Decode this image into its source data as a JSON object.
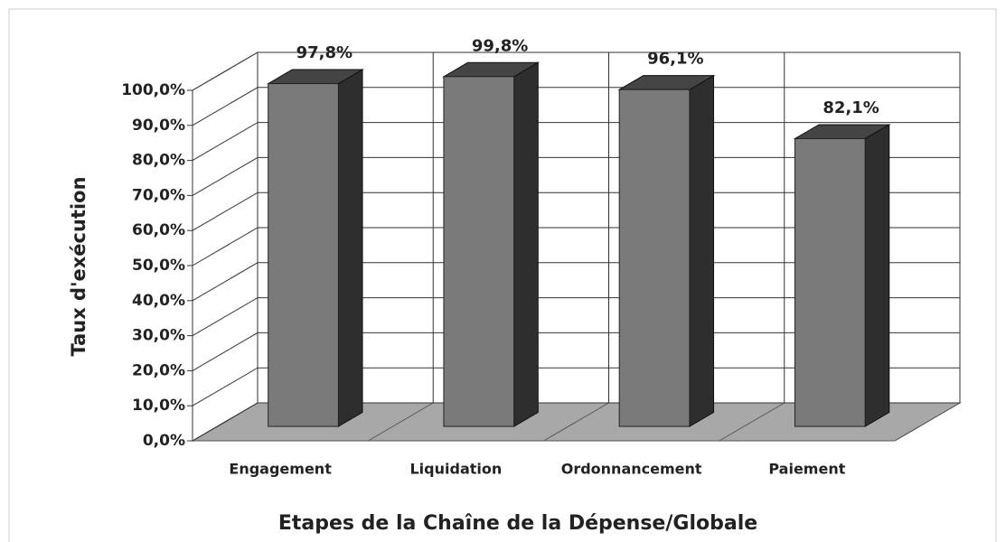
{
  "chart_data": {
    "type": "bar3d",
    "x_label": "Etapes de la Chaîne de la Dépense/Globale",
    "y_label": "Taux d'exécution",
    "categories": [
      "Engagement",
      "Liquidation",
      "Ordonnancement",
      "Paiement"
    ],
    "values": [
      97.8,
      99.8,
      96.1,
      82.1
    ],
    "value_labels": [
      "97,8%",
      "99,8%",
      "96,1%",
      "82,1%"
    ],
    "color": "#7a7a7a",
    "ylim": [
      0,
      100
    ],
    "yticks": [
      {
        "value": 0,
        "label": "0,0%"
      },
      {
        "value": 10,
        "label": "10,0%"
      },
      {
        "value": 20,
        "label": "20,0%"
      },
      {
        "value": 30,
        "label": "30,0%"
      },
      {
        "value": 40,
        "label": "40,0%"
      },
      {
        "value": 50,
        "label": "50,0%"
      },
      {
        "value": 60,
        "label": "60,0%"
      },
      {
        "value": 70,
        "label": "70,0%"
      },
      {
        "value": 80,
        "label": "80,0%"
      },
      {
        "value": 90,
        "label": "90,0%"
      },
      {
        "value": 100,
        "label": "100,0%"
      }
    ],
    "grid": true
  }
}
